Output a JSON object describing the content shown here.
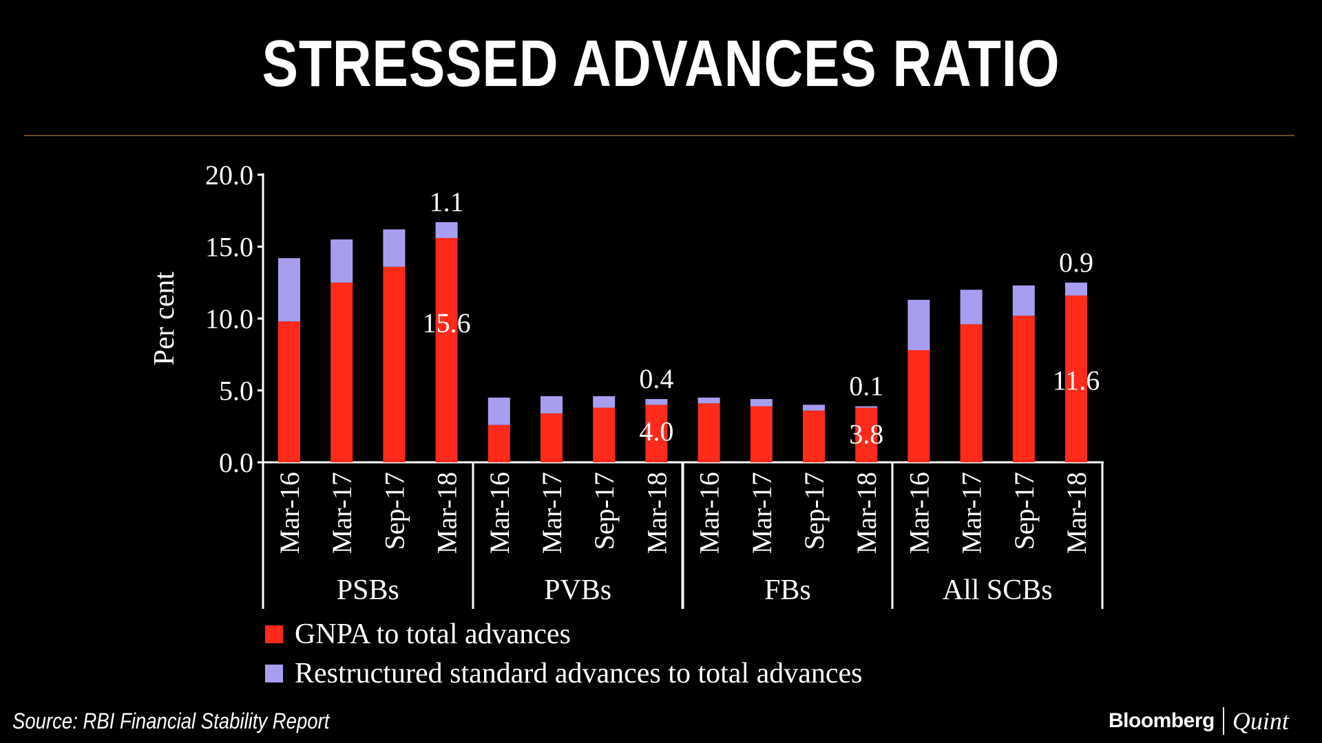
{
  "title": "STRESSED ADVANCES RATIO",
  "source": "Source: RBI Financial Stability Report",
  "brand": {
    "left": "Bloomberg",
    "right": "Quint"
  },
  "chart_data": {
    "type": "bar",
    "stacked": true,
    "ylabel": "Per cent",
    "ylim": [
      0,
      20
    ],
    "yticks": [
      "0.0",
      "5.0",
      "10.0",
      "15.0",
      "20.0"
    ],
    "groups": [
      {
        "name": "PSBs",
        "categories": [
          "Mar-16",
          "Mar-17",
          "Sep-17",
          "Mar-18"
        ]
      },
      {
        "name": "PVBs",
        "categories": [
          "Mar-16",
          "Mar-17",
          "Sep-17",
          "Mar-18"
        ]
      },
      {
        "name": "FBs",
        "categories": [
          "Mar-16",
          "Mar-17",
          "Sep-17",
          "Mar-18"
        ]
      },
      {
        "name": "All SCBs",
        "categories": [
          "Mar-16",
          "Mar-17",
          "Sep-17",
          "Mar-18"
        ]
      }
    ],
    "series": [
      {
        "name": "GNPA to total advances",
        "color": "#ff2a1a",
        "values": [
          9.8,
          12.5,
          13.6,
          15.6,
          2.6,
          3.4,
          3.8,
          4.0,
          4.1,
          3.9,
          3.6,
          3.8,
          7.8,
          9.6,
          10.2,
          11.6
        ]
      },
      {
        "name": "Restructured standard advances to total advances",
        "color": "#a89ef0",
        "values": [
          4.4,
          3.0,
          2.6,
          1.1,
          1.9,
          1.2,
          0.8,
          0.4,
          0.4,
          0.5,
          0.4,
          0.1,
          3.5,
          2.4,
          2.1,
          0.9
        ]
      }
    ],
    "data_labels": [
      {
        "index": 3,
        "gnpa": "15.6",
        "restructured": "1.1"
      },
      {
        "index": 7,
        "gnpa": "4.0",
        "restructured": "0.4"
      },
      {
        "index": 11,
        "gnpa": "3.8",
        "restructured": "0.1"
      },
      {
        "index": 15,
        "gnpa": "11.6",
        "restructured": "0.9"
      }
    ]
  }
}
